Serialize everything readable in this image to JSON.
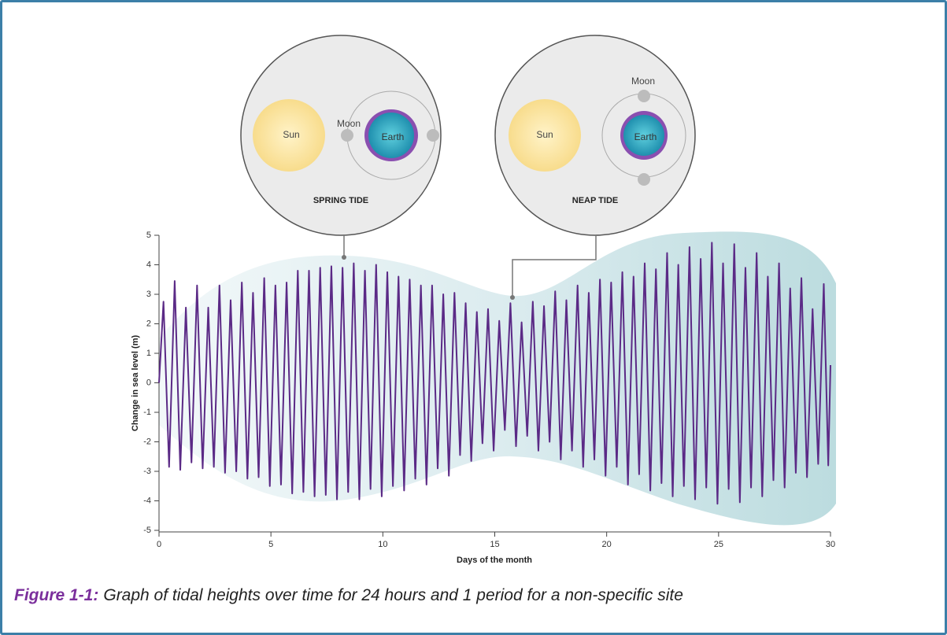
{
  "chart_data": {
    "type": "line",
    "x_label": "Days of the month",
    "y_label": "Change in sea level (m)",
    "xlim": [
      0,
      30
    ],
    "ylim": [
      -5,
      5
    ],
    "xticks": [
      0,
      5,
      10,
      15,
      20,
      25,
      30
    ],
    "yticks": [
      -5,
      -4,
      -3,
      -2,
      -1,
      0,
      1,
      2,
      3,
      4,
      5
    ],
    "annotations": [
      "SPRING TIDE",
      "NEAP TIDE"
    ],
    "diagram_labels": [
      "Sun",
      "Moon",
      "Earth"
    ],
    "caption": {
      "label": "Figure 1-1:",
      "text": "Graph of tidal heights over time for 24 hours and 1 period for a non-specific site"
    },
    "series": [
      {
        "color": "#5b2a86",
        "x": [
          0,
          0.2,
          0.45,
          0.7,
          0.95,
          1.2,
          1.45,
          1.7,
          1.95,
          2.2,
          2.45,
          2.7,
          2.95,
          3.2,
          3.45,
          3.7,
          3.95,
          4.2,
          4.45,
          4.7,
          4.95,
          5.2,
          5.45,
          5.7,
          5.95,
          6.2,
          6.45,
          6.7,
          6.95,
          7.2,
          7.45,
          7.7,
          7.95,
          8.2,
          8.45,
          8.7,
          8.95,
          9.2,
          9.45,
          9.7,
          9.95,
          10.2,
          10.45,
          10.7,
          10.95,
          11.2,
          11.45,
          11.7,
          11.95,
          12.2,
          12.45,
          12.7,
          12.95,
          13.2,
          13.45,
          13.7,
          13.95,
          14.2,
          14.45,
          14.7,
          14.95,
          15.2,
          15.45,
          15.7,
          15.95,
          16.2,
          16.45,
          16.7,
          16.95,
          17.2,
          17.45,
          17.7,
          17.95,
          18.2,
          18.45,
          18.7,
          18.95,
          19.2,
          19.45,
          19.7,
          19.95,
          20.2,
          20.45,
          20.7,
          20.95,
          21.2,
          21.45,
          21.7,
          21.95,
          22.2,
          22.45,
          22.7,
          22.95,
          23.2,
          23.45,
          23.7,
          23.95,
          24.2,
          24.45,
          24.7,
          24.95,
          25.2,
          25.45,
          25.7,
          25.95,
          26.2,
          26.45,
          26.7,
          26.95,
          27.2,
          27.45,
          27.7,
          27.95,
          28.2,
          28.45,
          28.7,
          28.95,
          29.2,
          29.45,
          29.7,
          29.9,
          30
        ],
        "values": [
          0,
          2.75,
          -2.85,
          3.45,
          -2.95,
          2.55,
          -2.7,
          3.3,
          -2.9,
          2.55,
          -2.85,
          3.3,
          -3.05,
          2.8,
          -3.0,
          3.4,
          -3.25,
          3.05,
          -3.2,
          3.55,
          -3.5,
          3.3,
          -3.45,
          3.4,
          -3.75,
          3.8,
          -3.7,
          3.8,
          -3.85,
          3.9,
          -3.8,
          3.95,
          -3.95,
          3.9,
          -3.7,
          4.05,
          -3.95,
          3.8,
          -3.6,
          4.0,
          -3.85,
          3.75,
          -3.5,
          3.6,
          -3.65,
          3.5,
          -3.25,
          3.3,
          -3.45,
          3.3,
          -2.9,
          3.0,
          -3.15,
          3.05,
          -2.45,
          2.7,
          -2.65,
          2.4,
          -2.05,
          2.5,
          -2.3,
          2.1,
          -1.6,
          2.7,
          -2.15,
          2.05,
          -1.8,
          2.75,
          -2.3,
          2.6,
          -2.0,
          3.1,
          -2.6,
          2.8,
          -2.3,
          3.3,
          -2.85,
          3.05,
          -2.6,
          3.5,
          -3.15,
          3.4,
          -2.85,
          3.75,
          -3.45,
          3.6,
          -3.1,
          4.05,
          -3.65,
          3.85,
          -3.4,
          4.4,
          -3.85,
          4.0,
          -3.5,
          4.6,
          -3.95,
          4.2,
          -3.55,
          4.75,
          -4.1,
          4.05,
          -3.6,
          4.7,
          -4.05,
          3.9,
          -3.55,
          4.4,
          -3.85,
          3.6,
          -3.3,
          4.05,
          -3.55,
          3.2,
          -3.05,
          3.55,
          -3.2,
          2.5,
          -2.75,
          3.35,
          -2.8,
          0.6
        ]
      }
    ]
  }
}
